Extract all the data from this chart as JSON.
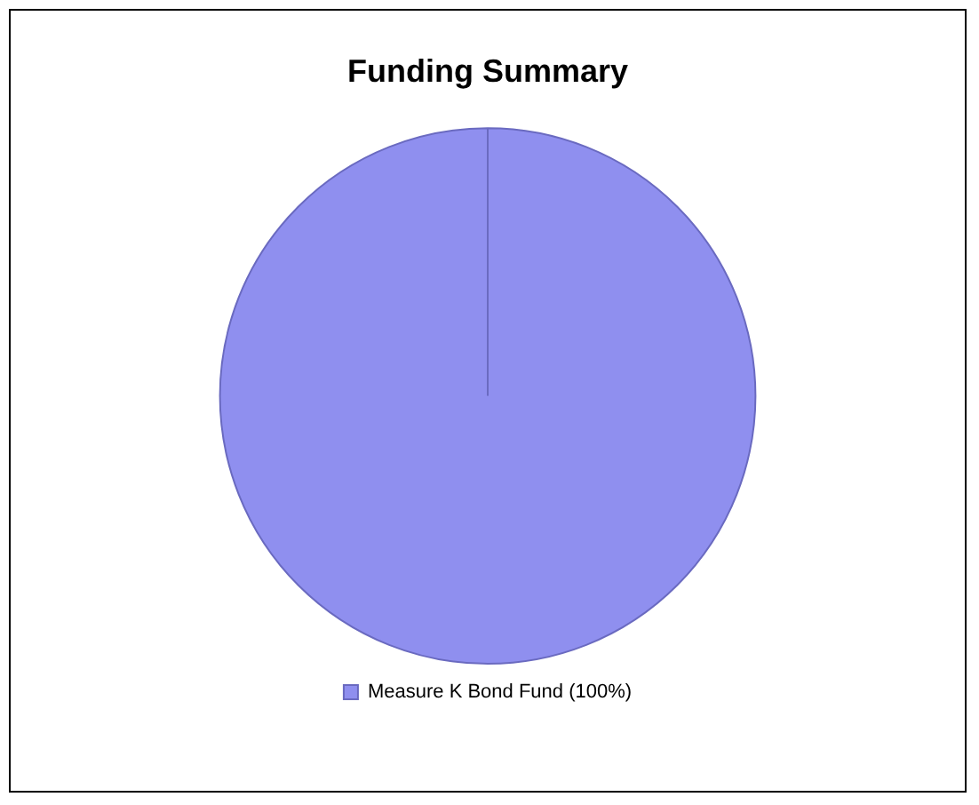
{
  "chart_data": {
    "type": "pie",
    "title": "Funding Summary",
    "categories": [
      "Measure K Bond Fund (100%)"
    ],
    "values": [
      100
    ],
    "colors": [
      "#8f8fef"
    ],
    "legend": "bottom"
  }
}
